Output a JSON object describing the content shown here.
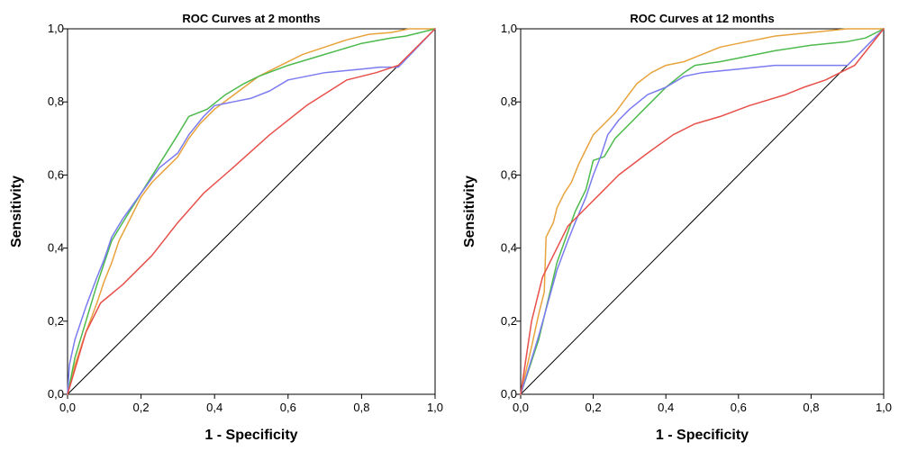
{
  "chart_data": [
    {
      "type": "line",
      "title": "ROC Curves at 2 months",
      "xlabel": "1 - Specificity",
      "ylabel": "Sensitivity",
      "xlim": [
        0,
        1
      ],
      "ylim": [
        0,
        1
      ],
      "xticks": [
        "0,0",
        "0,2",
        "0,4",
        "0,6",
        "0,8",
        "1,0"
      ],
      "yticks": [
        "0,0",
        "0,2",
        "0,4",
        "0,6",
        "0,8",
        "1,0"
      ],
      "grid": false,
      "reference_line": true,
      "series": [
        {
          "color": "#e8a33c",
          "points": [
            [
              0,
              0
            ],
            [
              0.02,
              0.08
            ],
            [
              0.05,
              0.17
            ],
            [
              0.08,
              0.25
            ],
            [
              0.1,
              0.31
            ],
            [
              0.12,
              0.36
            ],
            [
              0.14,
              0.42
            ],
            [
              0.17,
              0.48
            ],
            [
              0.2,
              0.54
            ],
            [
              0.23,
              0.58
            ],
            [
              0.26,
              0.61
            ],
            [
              0.3,
              0.65
            ],
            [
              0.33,
              0.7
            ],
            [
              0.36,
              0.74
            ],
            [
              0.4,
              0.78
            ],
            [
              0.44,
              0.81
            ],
            [
              0.48,
              0.84
            ],
            [
              0.52,
              0.87
            ],
            [
              0.58,
              0.9
            ],
            [
              0.64,
              0.93
            ],
            [
              0.7,
              0.95
            ],
            [
              0.76,
              0.97
            ],
            [
              0.82,
              0.985
            ],
            [
              0.88,
              0.99
            ],
            [
              0.93,
              1.0
            ],
            [
              1,
              1
            ]
          ]
        },
        {
          "color": "#4dba4d",
          "points": [
            [
              0,
              0
            ],
            [
              0.02,
              0.1
            ],
            [
              0.05,
              0.2
            ],
            [
              0.08,
              0.3
            ],
            [
              0.1,
              0.36
            ],
            [
              0.12,
              0.42
            ],
            [
              0.15,
              0.47
            ],
            [
              0.2,
              0.55
            ],
            [
              0.25,
              0.63
            ],
            [
              0.3,
              0.71
            ],
            [
              0.33,
              0.76
            ],
            [
              0.38,
              0.78
            ],
            [
              0.43,
              0.82
            ],
            [
              0.48,
              0.85
            ],
            [
              0.52,
              0.87
            ],
            [
              0.6,
              0.9
            ],
            [
              0.7,
              0.93
            ],
            [
              0.8,
              0.96
            ],
            [
              0.88,
              0.975
            ],
            [
              0.92,
              0.98
            ],
            [
              0.96,
              0.99
            ],
            [
              1,
              1
            ]
          ]
        },
        {
          "color": "#7b7bf0",
          "points": [
            [
              0,
              0
            ],
            [
              0.005,
              0.08
            ],
            [
              0.02,
              0.15
            ],
            [
              0.05,
              0.24
            ],
            [
              0.08,
              0.32
            ],
            [
              0.1,
              0.37
            ],
            [
              0.12,
              0.43
            ],
            [
              0.15,
              0.48
            ],
            [
              0.2,
              0.55
            ],
            [
              0.25,
              0.62
            ],
            [
              0.3,
              0.66
            ],
            [
              0.33,
              0.71
            ],
            [
              0.37,
              0.76
            ],
            [
              0.4,
              0.79
            ],
            [
              0.45,
              0.8
            ],
            [
              0.5,
              0.81
            ],
            [
              0.55,
              0.83
            ],
            [
              0.6,
              0.86
            ],
            [
              0.7,
              0.88
            ],
            [
              0.8,
              0.89
            ],
            [
              0.85,
              0.895
            ],
            [
              0.9,
              0.895
            ],
            [
              1,
              1
            ]
          ]
        },
        {
          "color": "#e8504a",
          "points": [
            [
              0,
              0
            ],
            [
              0.05,
              0.17
            ],
            [
              0.09,
              0.25
            ],
            [
              0.15,
              0.3
            ],
            [
              0.23,
              0.38
            ],
            [
              0.3,
              0.47
            ],
            [
              0.37,
              0.55
            ],
            [
              0.45,
              0.62
            ],
            [
              0.55,
              0.71
            ],
            [
              0.65,
              0.79
            ],
            [
              0.76,
              0.86
            ],
            [
              0.84,
              0.88
            ],
            [
              0.9,
              0.9
            ],
            [
              1,
              1
            ]
          ]
        }
      ]
    },
    {
      "type": "line",
      "title": "ROC Curves at 12 months",
      "xlabel": "1 - Specificity",
      "ylabel": "Sensitivity",
      "xlim": [
        0,
        1
      ],
      "ylim": [
        0,
        1
      ],
      "xticks": [
        "0,0",
        "0,2",
        "0,4",
        "0,6",
        "0,8",
        "1,0"
      ],
      "yticks": [
        "0,0",
        "0,2",
        "0,4",
        "0,6",
        "0,8",
        "1,0"
      ],
      "grid": false,
      "reference_line": true,
      "series": [
        {
          "color": "#e8a33c",
          "points": [
            [
              0,
              0
            ],
            [
              0.03,
              0.13
            ],
            [
              0.05,
              0.22
            ],
            [
              0.065,
              0.28
            ],
            [
              0.07,
              0.43
            ],
            [
              0.09,
              0.47
            ],
            [
              0.1,
              0.51
            ],
            [
              0.12,
              0.55
            ],
            [
              0.14,
              0.58
            ],
            [
              0.16,
              0.63
            ],
            [
              0.18,
              0.67
            ],
            [
              0.2,
              0.71
            ],
            [
              0.23,
              0.74
            ],
            [
              0.26,
              0.77
            ],
            [
              0.29,
              0.81
            ],
            [
              0.32,
              0.85
            ],
            [
              0.36,
              0.88
            ],
            [
              0.4,
              0.9
            ],
            [
              0.45,
              0.91
            ],
            [
              0.5,
              0.93
            ],
            [
              0.55,
              0.95
            ],
            [
              0.6,
              0.96
            ],
            [
              0.7,
              0.98
            ],
            [
              0.8,
              0.99
            ],
            [
              0.9,
              1.0
            ],
            [
              1,
              1
            ]
          ]
        },
        {
          "color": "#4dba4d",
          "points": [
            [
              0,
              0
            ],
            [
              0.05,
              0.15
            ],
            [
              0.1,
              0.36
            ],
            [
              0.15,
              0.5
            ],
            [
              0.18,
              0.56
            ],
            [
              0.2,
              0.64
            ],
            [
              0.23,
              0.65
            ],
            [
              0.26,
              0.7
            ],
            [
              0.3,
              0.74
            ],
            [
              0.35,
              0.79
            ],
            [
              0.4,
              0.84
            ],
            [
              0.45,
              0.88
            ],
            [
              0.48,
              0.9
            ],
            [
              0.55,
              0.91
            ],
            [
              0.6,
              0.92
            ],
            [
              0.7,
              0.94
            ],
            [
              0.8,
              0.955
            ],
            [
              0.9,
              0.965
            ],
            [
              0.95,
              0.975
            ],
            [
              1,
              1
            ]
          ]
        },
        {
          "color": "#7b7bf0",
          "points": [
            [
              0,
              0
            ],
            [
              0.05,
              0.16
            ],
            [
              0.1,
              0.34
            ],
            [
              0.13,
              0.42
            ],
            [
              0.15,
              0.47
            ],
            [
              0.18,
              0.54
            ],
            [
              0.2,
              0.6
            ],
            [
              0.22,
              0.65
            ],
            [
              0.24,
              0.71
            ],
            [
              0.27,
              0.75
            ],
            [
              0.3,
              0.78
            ],
            [
              0.35,
              0.82
            ],
            [
              0.4,
              0.84
            ],
            [
              0.45,
              0.87
            ],
            [
              0.5,
              0.88
            ],
            [
              0.6,
              0.89
            ],
            [
              0.7,
              0.9
            ],
            [
              0.8,
              0.9
            ],
            [
              0.9,
              0.9
            ],
            [
              1,
              1
            ]
          ]
        },
        {
          "color": "#e8504a",
          "points": [
            [
              0,
              0
            ],
            [
              0.03,
              0.2
            ],
            [
              0.06,
              0.32
            ],
            [
              0.1,
              0.4
            ],
            [
              0.13,
              0.46
            ],
            [
              0.18,
              0.51
            ],
            [
              0.22,
              0.55
            ],
            [
              0.27,
              0.6
            ],
            [
              0.35,
              0.66
            ],
            [
              0.42,
              0.71
            ],
            [
              0.48,
              0.74
            ],
            [
              0.55,
              0.76
            ],
            [
              0.63,
              0.79
            ],
            [
              0.73,
              0.82
            ],
            [
              0.78,
              0.84
            ],
            [
              0.84,
              0.86
            ],
            [
              0.92,
              0.9
            ],
            [
              1,
              1
            ]
          ]
        }
      ]
    }
  ]
}
